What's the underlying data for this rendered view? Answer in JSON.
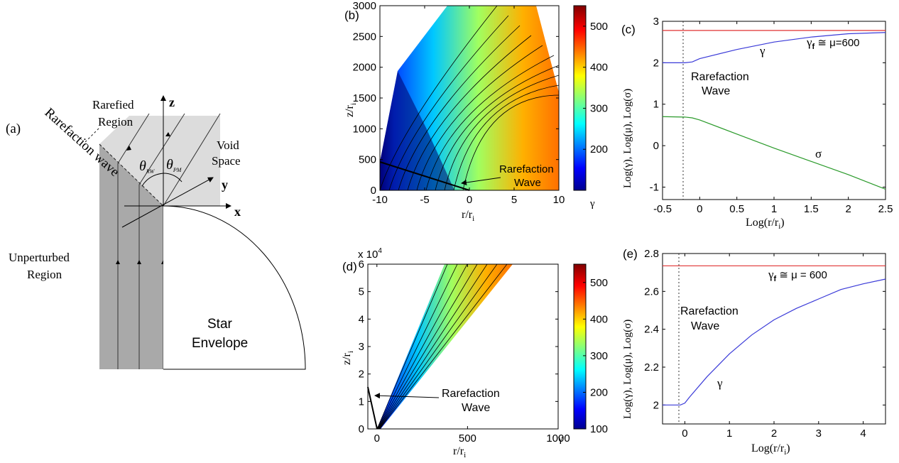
{
  "panel_a": {
    "label": "(a)",
    "axis_z": "z",
    "axis_x": "x",
    "axis_y": "y",
    "rarefied_region": [
      "Rarefied",
      "Region"
    ],
    "rarefaction_wave": "Rarefaction wave",
    "theta_rw": "θ",
    "theta_rw_sub": "RW",
    "theta_pm": "θ",
    "theta_pm_sub": "PM",
    "void_space": [
      "Void",
      "Space"
    ],
    "unperturbed_region": [
      "Unperturbed",
      "Region"
    ],
    "star_envelope": [
      "Star",
      "Envelope"
    ]
  },
  "chart_data": [
    {
      "id": "b",
      "type": "heatmap",
      "label": "(b)",
      "xlabel": "r/r",
      "xlabel_sub": "i",
      "ylabel": "z/r",
      "ylabel_sub": "i",
      "xlim": [
        -10,
        10
      ],
      "ylim": [
        0,
        3000
      ],
      "xticks": [
        "-10",
        "-5",
        "0",
        "5",
        "10"
      ],
      "yticks": [
        "0",
        "500",
        "1000",
        "1500",
        "2000",
        "2500",
        "3000"
      ],
      "colorbar": {
        "min": 100,
        "max": 550,
        "ticks": [
          "200",
          "300",
          "400",
          "500"
        ],
        "label": "γ"
      },
      "annotation": [
        "Rarefaction",
        "Wave"
      ]
    },
    {
      "id": "c",
      "type": "line",
      "label": "(c)",
      "xlabel": "Log(r/r",
      "xlabel_sub": "i",
      "xlabel_end": ")",
      "ylabel": "Log(γ), Log(μ), Log(σ)",
      "xlim": [
        -0.5,
        2.5
      ],
      "ylim": [
        -1.3,
        3.0
      ],
      "xticks": [
        "-0.5",
        "0",
        "0.5",
        "1",
        "1.5",
        "2",
        "2.5"
      ],
      "yticks": [
        "-1",
        "0",
        "1",
        "2",
        "3"
      ],
      "series": [
        {
          "name": "μ",
          "color": "#e03030",
          "x": [
            -0.5,
            2.5
          ],
          "y": [
            2.78,
            2.78
          ]
        },
        {
          "name": "γ",
          "color": "#3a3ad8",
          "x": [
            -0.5,
            -0.2,
            -0.1,
            0.0,
            0.5,
            1.0,
            1.5,
            2.0,
            2.5
          ],
          "y": [
            2.0,
            2.0,
            2.02,
            2.1,
            2.32,
            2.5,
            2.62,
            2.7,
            2.73
          ]
        },
        {
          "name": "σ",
          "color": "#2a9a2a",
          "x": [
            -0.5,
            -0.2,
            -0.1,
            0.0,
            0.5,
            1.0,
            1.5,
            2.0,
            2.5
          ],
          "y": [
            0.7,
            0.69,
            0.67,
            0.62,
            0.28,
            -0.06,
            -0.38,
            -0.7,
            -1.05
          ]
        }
      ],
      "annotations": [
        "γ",
        "σ",
        "Rarefaction",
        "Wave"
      ],
      "gamma_f_label": "γ",
      "gamma_f_sub": "f",
      "gamma_f_rest": " ≅ μ=600"
    },
    {
      "id": "d",
      "type": "heatmap",
      "label": "(d)",
      "xlabel": "r/r",
      "xlabel_sub": "i",
      "ylabel": "z/r",
      "ylabel_sub": "i",
      "xlim": [
        -50,
        1000
      ],
      "ylim": [
        0,
        6
      ],
      "y_multiplier": "x 10",
      "y_multiplier_exp": "4",
      "xticks": [
        "0",
        "500",
        "1000"
      ],
      "yticks": [
        "0",
        "1",
        "2",
        "3",
        "4",
        "5",
        "6"
      ],
      "colorbar": {
        "min": 100,
        "max": 550,
        "ticks": [
          "100",
          "200",
          "300",
          "400",
          "500"
        ],
        "label": "γ"
      },
      "annotation": [
        "Rarefaction",
        "Wave"
      ]
    },
    {
      "id": "e",
      "type": "line",
      "label": "(e)",
      "xlabel": "Log(r/r",
      "xlabel_sub": "i",
      "xlabel_end": ")",
      "ylabel": "Log(γ), Log(μ), Log(σ)",
      "xlim": [
        -0.5,
        4.5
      ],
      "ylim": [
        1.9,
        2.8
      ],
      "xticks": [
        "0",
        "1",
        "2",
        "3",
        "4"
      ],
      "yticks": [
        "2",
        "2.2",
        "2.4",
        "2.6",
        "2.8"
      ],
      "series": [
        {
          "name": "μ",
          "color": "#e03030",
          "x": [
            -0.5,
            4.5
          ],
          "y": [
            2.735,
            2.735
          ]
        },
        {
          "name": "γ",
          "color": "#3a3ad8",
          "x": [
            -0.5,
            -0.1,
            0.0,
            0.1,
            0.5,
            1.0,
            1.5,
            2.0,
            2.5,
            3.0,
            3.5,
            4.0,
            4.5
          ],
          "y": [
            2.0,
            2.0,
            2.01,
            2.04,
            2.15,
            2.27,
            2.37,
            2.45,
            2.51,
            2.56,
            2.61,
            2.64,
            2.665
          ]
        }
      ],
      "annotations": [
        "γ",
        "Rarefaction",
        "Wave"
      ],
      "gamma_f_label": "γ",
      "gamma_f_sub": "f",
      "gamma_f_rest": " ≅ μ = 600"
    }
  ]
}
